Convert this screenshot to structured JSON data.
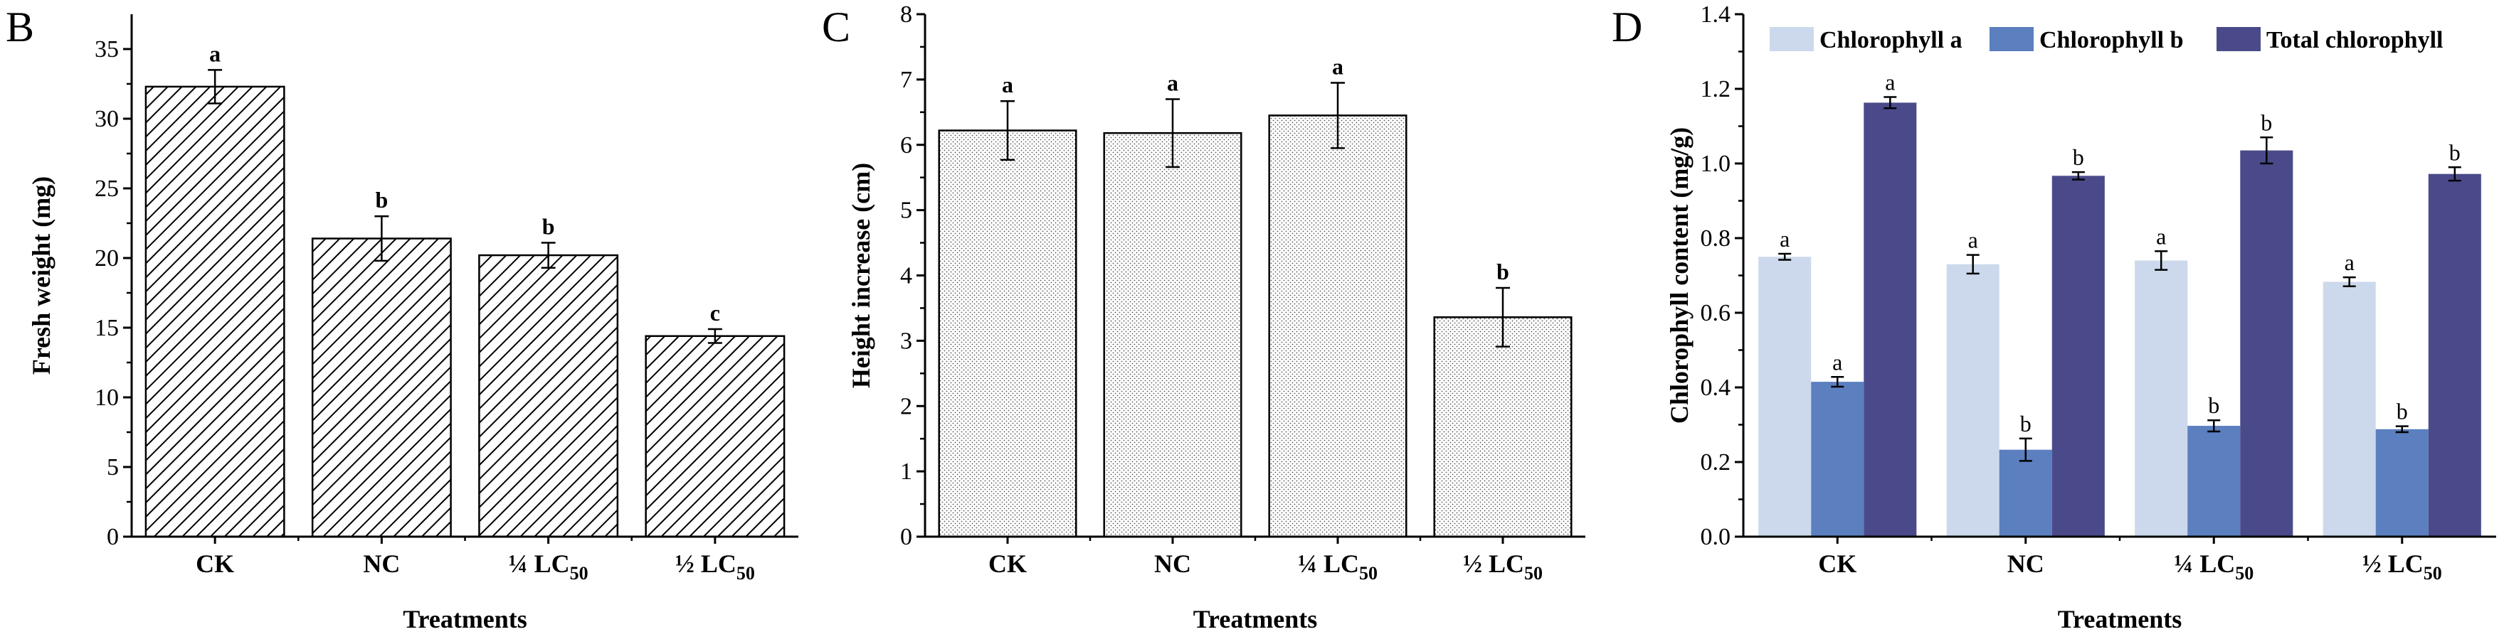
{
  "chart_data": [
    {
      "panel": "B",
      "type": "bar",
      "categories": [
        {
          "main": "CK",
          "sub": ""
        },
        {
          "main": "NC",
          "sub": ""
        },
        {
          "main": "¼ LC",
          "sub": "50"
        },
        {
          "main": "½ LC",
          "sub": "50"
        }
      ],
      "values": [
        32.3,
        21.4,
        20.2,
        14.4
      ],
      "errors": [
        1.2,
        1.6,
        0.9,
        0.5
      ],
      "letters": [
        "a",
        "b",
        "b",
        "c"
      ],
      "xlabel": "Treatments",
      "ylabel": "Fresh weight (mg)",
      "ylim": [
        0,
        37.5
      ],
      "yticks": [
        0,
        5,
        10,
        15,
        20,
        25,
        30,
        35
      ],
      "pattern": "diagonal-hatch",
      "grid": false
    },
    {
      "panel": "C",
      "type": "bar",
      "categories": [
        {
          "main": "CK",
          "sub": ""
        },
        {
          "main": "NC",
          "sub": ""
        },
        {
          "main": "¼ LC",
          "sub": "50"
        },
        {
          "main": "½ LC",
          "sub": "50"
        }
      ],
      "values": [
        6.22,
        6.18,
        6.45,
        3.36
      ],
      "errors": [
        0.45,
        0.52,
        0.5,
        0.45
      ],
      "letters": [
        "a",
        "a",
        "a",
        "b"
      ],
      "xlabel": "Treatments",
      "ylabel": "Height increase (cm)",
      "ylim": [
        0,
        8
      ],
      "yticks": [
        0,
        1,
        2,
        3,
        4,
        5,
        6,
        7,
        8
      ],
      "pattern": "dots",
      "grid": false
    },
    {
      "panel": "D",
      "type": "bar",
      "categories": [
        {
          "main": "CK",
          "sub": ""
        },
        {
          "main": "NC",
          "sub": ""
        },
        {
          "main": "¼ LC",
          "sub": "50"
        },
        {
          "main": "½ LC",
          "sub": "50"
        }
      ],
      "series": [
        {
          "name": "Chlorophyll a",
          "color": "#ccd9ec",
          "values": [
            0.75,
            0.73,
            0.74,
            0.683
          ],
          "errors": [
            0.008,
            0.025,
            0.025,
            0.012
          ],
          "letters": [
            "a",
            "a",
            "a",
            "a"
          ]
        },
        {
          "name": "Chlorophyll b",
          "color": "#5b7fbf",
          "values": [
            0.415,
            0.233,
            0.297,
            0.288
          ],
          "errors": [
            0.013,
            0.03,
            0.015,
            0.008
          ],
          "letters": [
            "a",
            "b",
            "b",
            "b"
          ]
        },
        {
          "name": "Total chlorophyll",
          "color": "#4a4a8a",
          "values": [
            1.163,
            0.967,
            1.035,
            0.972
          ],
          "errors": [
            0.015,
            0.01,
            0.035,
            0.018
          ],
          "letters": [
            "a",
            "b",
            "b",
            "b"
          ]
        }
      ],
      "xlabel": "Treatments",
      "ylabel": "Chlorophyll content (mg/g)",
      "ylim": [
        0,
        1.4
      ],
      "yticks": [
        0.0,
        0.2,
        0.4,
        0.6,
        0.8,
        1.0,
        1.2,
        1.4
      ],
      "ytick_format": "0.1f",
      "legend": "top",
      "grid": false
    }
  ]
}
